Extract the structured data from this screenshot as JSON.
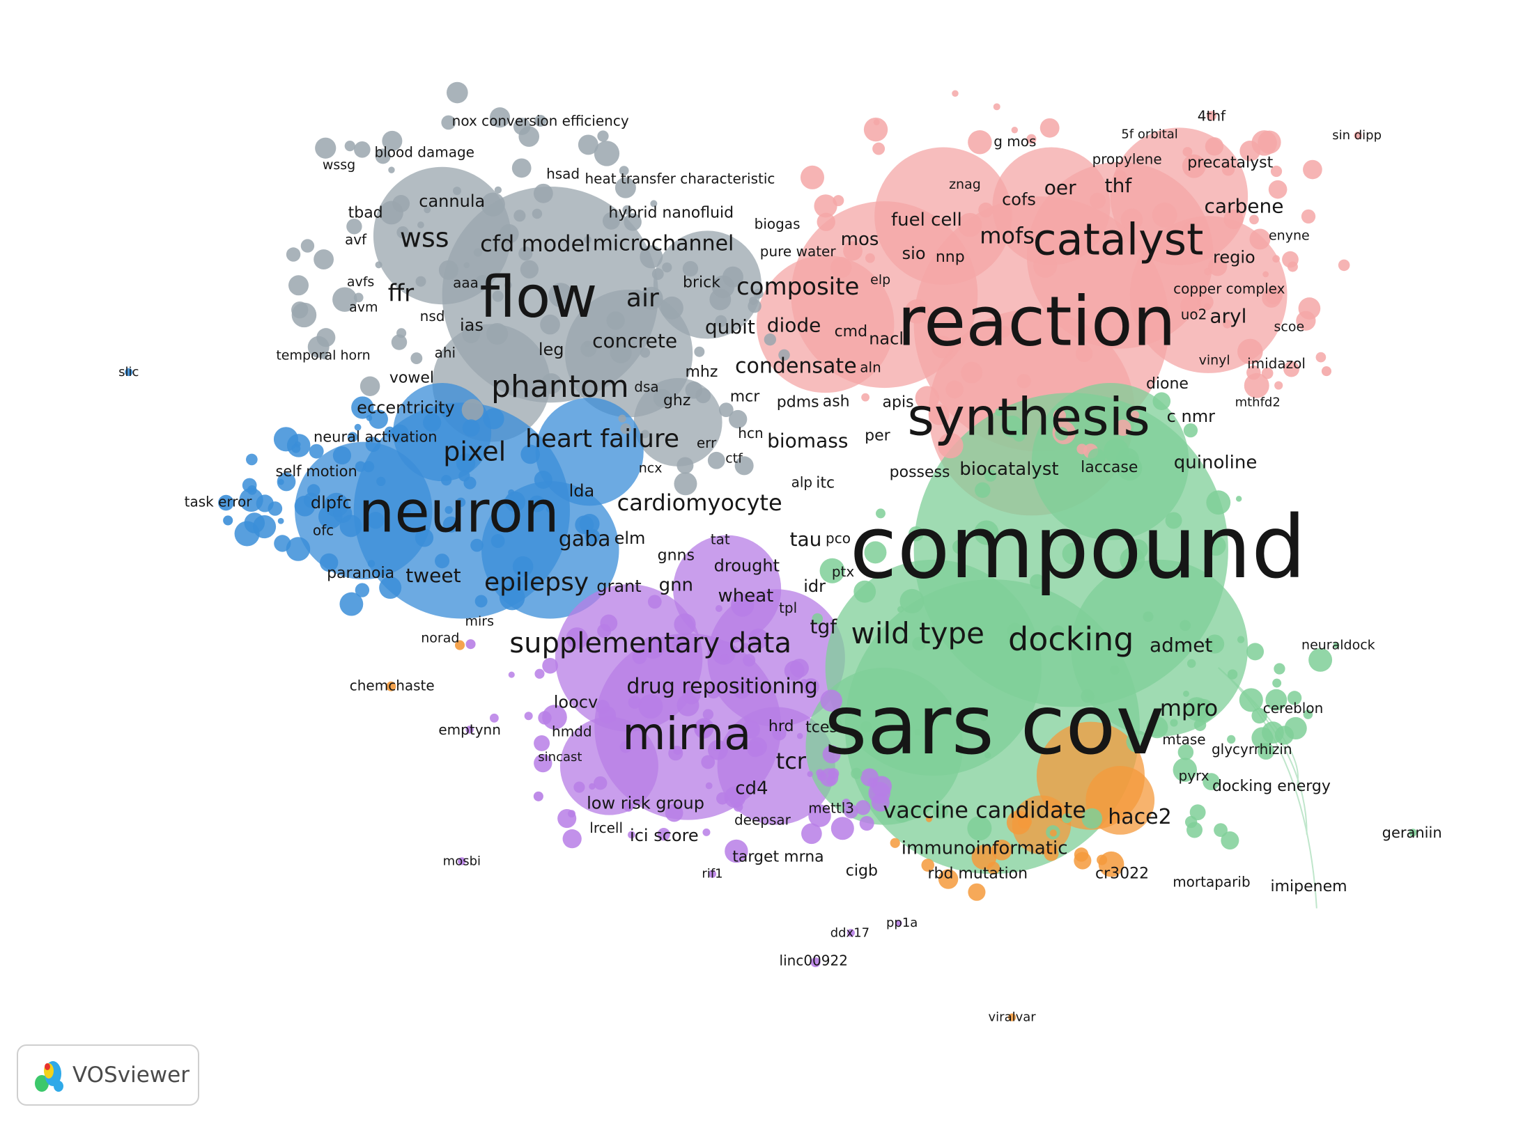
{
  "clusters": {
    "red": {
      "fill": "#f4a7a7",
      "edge": "#e59a9a"
    },
    "green": {
      "fill": "#7fcf98",
      "edge": "#6cc185"
    },
    "blue": {
      "fill": "#3b8ed8",
      "edge": "#2f7cc4"
    },
    "purple": {
      "fill": "#b77ee6",
      "edge": "#a86bd8"
    },
    "gray": {
      "fill": "#9aa6ae",
      "edge": "#8c99a2"
    },
    "orange": {
      "fill": "#f49a3c",
      "edge": "#e38a2e"
    }
  },
  "labels": [
    {
      "text": "compound",
      "size": 124
    },
    {
      "text": "sars cov",
      "size": 118
    },
    {
      "text": "reaction",
      "size": 98
    },
    {
      "text": "synthesis",
      "size": 74
    },
    {
      "text": "flow",
      "size": 82
    },
    {
      "text": "neuron",
      "size": 82
    },
    {
      "text": "mirna",
      "size": 64
    },
    {
      "text": "catalyst",
      "size": 62
    },
    {
      "text": "docking",
      "size": 46
    },
    {
      "text": "wild type",
      "size": 42
    },
    {
      "text": "phantom",
      "size": 44
    },
    {
      "text": "supplementary data",
      "size": 40
    },
    {
      "text": "heart failure",
      "size": 36
    },
    {
      "text": "cardiomyocyte",
      "size": 32
    },
    {
      "text": "pixel",
      "size": 38
    },
    {
      "text": "epilepsy",
      "size": 36
    },
    {
      "text": "wss",
      "size": 38
    },
    {
      "text": "cfd model",
      "size": 32
    },
    {
      "text": "microchannel",
      "size": 30
    },
    {
      "text": "composite",
      "size": 34
    },
    {
      "text": "air",
      "size": 36
    },
    {
      "text": "mofs",
      "size": 32
    },
    {
      "text": "condensate",
      "size": 30
    },
    {
      "text": "drug repositioning",
      "size": 30
    },
    {
      "text": "vaccine candidate",
      "size": 32
    },
    {
      "text": "mpro",
      "size": 32
    },
    {
      "text": "biocatalyst",
      "size": 26
    },
    {
      "text": "laccase",
      "size": 22
    },
    {
      "text": "quinoline",
      "size": 26
    },
    {
      "text": "admet",
      "size": 28
    },
    {
      "text": "hace2",
      "size": 30
    },
    {
      "text": "tcr",
      "size": 32
    },
    {
      "text": "immunoinformatic",
      "size": 26
    },
    {
      "text": "ffr",
      "size": 34
    },
    {
      "text": "concrete",
      "size": 28
    },
    {
      "text": "qubit",
      "size": 28
    },
    {
      "text": "diode",
      "size": 28
    },
    {
      "text": "biomass",
      "size": 28
    },
    {
      "text": "gaba",
      "size": 30
    },
    {
      "text": "tweet",
      "size": 28
    },
    {
      "text": "paranoia",
      "size": 22
    },
    {
      "text": "carbene",
      "size": 28
    },
    {
      "text": "oer",
      "size": 28
    },
    {
      "text": "thf",
      "size": 28
    },
    {
      "text": "fuel cell",
      "size": 26
    },
    {
      "text": "cofs",
      "size": 24
    },
    {
      "text": "aryl",
      "size": 28
    },
    {
      "text": "regio",
      "size": 24
    },
    {
      "text": "dione",
      "size": 22
    },
    {
      "text": "c nmr",
      "size": 24
    },
    {
      "text": "possess",
      "size": 22
    },
    {
      "text": "cannula",
      "size": 24
    },
    {
      "text": "hybrid nanofluid",
      "size": 22
    },
    {
      "text": "leg",
      "size": 24
    },
    {
      "text": "ias",
      "size": 24
    },
    {
      "text": "nsd",
      "size": 20
    },
    {
      "text": "ahi",
      "size": 20
    },
    {
      "text": "vowel",
      "size": 22
    },
    {
      "text": "eccentricity",
      "size": 24
    },
    {
      "text": "neural activation",
      "size": 21
    },
    {
      "text": "self motion",
      "size": 21
    },
    {
      "text": "dlpfc",
      "size": 24
    },
    {
      "text": "ofc",
      "size": 20
    },
    {
      "text": "lda",
      "size": 24
    },
    {
      "text": "elm",
      "size": 24
    },
    {
      "text": "tau",
      "size": 28
    },
    {
      "text": "pco",
      "size": 20
    },
    {
      "text": "itc",
      "size": 22
    },
    {
      "text": "alp",
      "size": 20
    },
    {
      "text": "tgf",
      "size": 28
    },
    {
      "text": "idr",
      "size": 24
    },
    {
      "text": "ptx",
      "size": 20
    },
    {
      "text": "tpl",
      "size": 20
    },
    {
      "text": "drought",
      "size": 24
    },
    {
      "text": "wheat",
      "size": 26
    },
    {
      "text": "gnns",
      "size": 22
    },
    {
      "text": "gnn",
      "size": 26
    },
    {
      "text": "grant",
      "size": 24
    },
    {
      "text": "tat",
      "size": 20
    },
    {
      "text": "loocv",
      "size": 24
    },
    {
      "text": "hmdd",
      "size": 20
    },
    {
      "text": "hrd",
      "size": 22
    },
    {
      "text": "tces",
      "size": 22
    },
    {
      "text": "cd4",
      "size": 26
    },
    {
      "text": "low risk group",
      "size": 24
    },
    {
      "text": "lrcell",
      "size": 20
    },
    {
      "text": "ici score",
      "size": 24
    },
    {
      "text": "deepsar",
      "size": 20
    },
    {
      "text": "mettl3",
      "size": 20
    },
    {
      "text": "target mrna",
      "size": 22
    },
    {
      "text": "cigb",
      "size": 22
    },
    {
      "text": "rbd mutation",
      "size": 22
    },
    {
      "text": "cr3022",
      "size": 22
    },
    {
      "text": "mortaparib",
      "size": 20
    },
    {
      "text": "imipenem",
      "size": 22
    },
    {
      "text": "docking energy",
      "size": 22
    },
    {
      "text": "pyrx",
      "size": 20
    },
    {
      "text": "glycyrrhizin",
      "size": 20
    },
    {
      "text": "mtase",
      "size": 20
    },
    {
      "text": "cereblon",
      "size": 20
    },
    {
      "text": "neuraldock",
      "size": 19
    },
    {
      "text": "geraniin",
      "size": 21
    },
    {
      "text": "mos",
      "size": 26
    },
    {
      "text": "sio",
      "size": 24
    },
    {
      "text": "nnp",
      "size": 22
    },
    {
      "text": "elp",
      "size": 19
    },
    {
      "text": "cmd",
      "size": 22
    },
    {
      "text": "nacl",
      "size": 24
    },
    {
      "text": "aln",
      "size": 20
    },
    {
      "text": "apis",
      "size": 22
    },
    {
      "text": "ash",
      "size": 22
    },
    {
      "text": "pdms",
      "size": 22
    },
    {
      "text": "per",
      "size": 22
    },
    {
      "text": "mcr",
      "size": 22
    },
    {
      "text": "hcn",
      "size": 20
    },
    {
      "text": "err",
      "size": 20
    },
    {
      "text": "ctf",
      "size": 19
    },
    {
      "text": "ncx",
      "size": 19
    },
    {
      "text": "ghz",
      "size": 22
    },
    {
      "text": "dsa",
      "size": 20
    },
    {
      "text": "mhz",
      "size": 22
    },
    {
      "text": "brick",
      "size": 22
    },
    {
      "text": "biogas",
      "size": 20
    },
    {
      "text": "pure water",
      "size": 20
    },
    {
      "text": "heat transfer characteristic",
      "size": 20
    },
    {
      "text": "hsad",
      "size": 20
    },
    {
      "text": "nox conversion efficiency",
      "size": 20
    },
    {
      "text": "blood damage",
      "size": 20
    },
    {
      "text": "wssg",
      "size": 19
    },
    {
      "text": "tbad",
      "size": 22
    },
    {
      "text": "avf",
      "size": 20
    },
    {
      "text": "avfs",
      "size": 19
    },
    {
      "text": "avm",
      "size": 19
    },
    {
      "text": "aaa",
      "size": 20
    },
    {
      "text": "temporal horn",
      "size": 19
    },
    {
      "text": "slic",
      "size": 18
    },
    {
      "text": "task error",
      "size": 20
    },
    {
      "text": "mirs",
      "size": 19
    },
    {
      "text": "norad",
      "size": 19
    },
    {
      "text": "chemchaste",
      "size": 20
    },
    {
      "text": "emptynn",
      "size": 20
    },
    {
      "text": "sincast",
      "size": 18
    },
    {
      "text": "mosbi",
      "size": 18
    },
    {
      "text": "rif1",
      "size": 18
    },
    {
      "text": "ddx17",
      "size": 18
    },
    {
      "text": "pp1a",
      "size": 18
    },
    {
      "text": "linc00922",
      "size": 20
    },
    {
      "text": "viralvar",
      "size": 18
    },
    {
      "text": "g mos",
      "size": 20
    },
    {
      "text": "5f orbital",
      "size": 18
    },
    {
      "text": "4thf",
      "size": 20
    },
    {
      "text": "sin dipp",
      "size": 18
    },
    {
      "text": "propylene",
      "size": 20
    },
    {
      "text": "precatalyst",
      "size": 22
    },
    {
      "text": "znag",
      "size": 19
    },
    {
      "text": "enyne",
      "size": 19
    },
    {
      "text": "copper complex",
      "size": 20
    },
    {
      "text": "uo2",
      "size": 20
    },
    {
      "text": "scoe",
      "size": 19
    },
    {
      "text": "vinyl",
      "size": 19
    },
    {
      "text": "imidazol",
      "size": 20
    },
    {
      "text": "mthfd2",
      "size": 18
    }
  ],
  "logo": {
    "text": "VOSviewer"
  }
}
